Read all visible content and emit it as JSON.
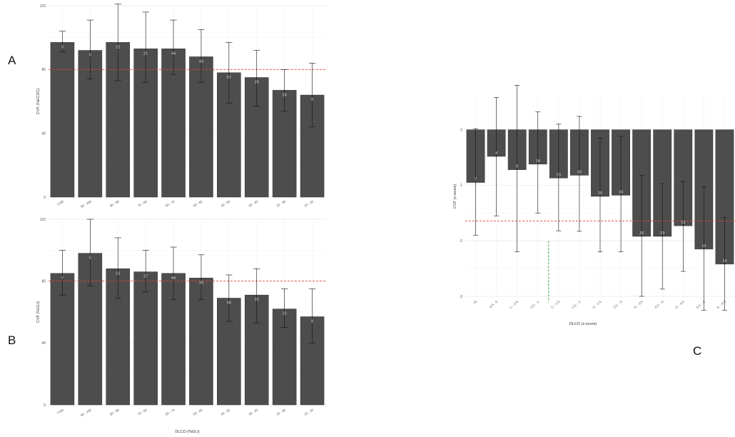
{
  "panel_labels": {
    "a": "A",
    "b": "B",
    "c": "C"
  },
  "colors": {
    "bar": "#4d4d4d",
    "bar_stroke": "#333333",
    "grid": "#e8e8e8",
    "ref_red": "#e8443a",
    "ref_green": "#34b233",
    "count_text": "#dddddd",
    "axis_text": "#555555"
  },
  "chart_data": [
    {
      "id": "A",
      "type": "bar",
      "ylabel": "CVF (%ECSC)",
      "xlabel": "",
      "ylim": [
        0,
        120
      ],
      "yticks": [
        0,
        40,
        80,
        120
      ],
      "categories": [
        ">100",
        "90 - 100",
        "80 - 90",
        "70 - 80",
        "60 - 70",
        "50 - 60",
        "40 - 50",
        "30 - 40",
        "20 - 30",
        "10 - 20"
      ],
      "values": [
        97,
        92,
        97,
        93,
        93,
        88,
        78,
        75,
        67,
        64
      ],
      "error_low": [
        91,
        74,
        73,
        72,
        77,
        72,
        59,
        57,
        54,
        44
      ],
      "error_high": [
        104,
        111,
        121,
        116,
        111,
        105,
        97,
        92,
        80,
        84
      ],
      "counts": [
        "3",
        "5",
        "12",
        "21",
        "44",
        "43",
        "57",
        "29",
        "24",
        "9"
      ],
      "reference_line": {
        "value": 80,
        "style": "dashed-red"
      }
    },
    {
      "id": "B",
      "type": "bar",
      "ylabel": "CVF (%GLI)",
      "xlabel": "DLCO (%GLI)",
      "ylim": [
        0,
        120
      ],
      "yticks": [
        0,
        40,
        80,
        120
      ],
      "categories": [
        ">100",
        "90 - 100",
        "80 - 90",
        "70 - 80",
        "60 - 70",
        "50 - 60",
        "40 - 50",
        "30 - 40",
        "20 - 30",
        "10 - 20"
      ],
      "values": [
        85,
        98,
        88,
        86,
        85,
        82,
        69,
        71,
        62,
        57
      ],
      "error_low": [
        71,
        77,
        69,
        73,
        68,
        68,
        54,
        53,
        50,
        40
      ],
      "error_high": [
        100,
        120,
        108,
        100,
        102,
        97,
        84,
        88,
        75,
        75
      ],
      "counts": [
        "7",
        "5",
        "12",
        "27",
        "49",
        "39",
        "56",
        "22",
        "22",
        "8"
      ],
      "reference_line": {
        "value": 80,
        "style": "dashed-red"
      }
    },
    {
      "id": "C",
      "type": "bar",
      "ylabel": "CVF (z-score)",
      "xlabel": "DLCO (z-score)",
      "ylim": [
        -3,
        0.6
      ],
      "yticks": [
        0,
        -1,
        -2,
        -3
      ],
      "categories": [
        ">0",
        "-0.5 - 0",
        "-1 - -0.5",
        "-1.5 - -1",
        "-2 - -1.5",
        "-2.5 - -2",
        "-3 - -2.5",
        "-3.5 - -3",
        "-4 - -3.5",
        "-4.5 - -4",
        "-5 - -4.5",
        "-5.5 - -5",
        "-6 - -5.5"
      ],
      "values": [
        -0.95,
        -0.48,
        -0.72,
        -0.62,
        -0.87,
        -0.82,
        -1.2,
        -1.18,
        -1.92,
        -1.92,
        -1.73,
        -2.15,
        -2.42
      ],
      "error_low": [
        -1.9,
        -1.55,
        -2.2,
        -1.5,
        -1.82,
        -1.83,
        -2.2,
        -2.2,
        -3.0,
        -2.87,
        -2.55,
        -3.25,
        -3.25
      ],
      "error_high": [
        0.02,
        0.58,
        0.8,
        0.32,
        0.1,
        0.24,
        -0.15,
        -0.12,
        -0.82,
        -0.97,
        -0.93,
        -1.03,
        -1.58
      ],
      "counts": [
        "7",
        "4",
        "8",
        "14",
        "23",
        "33",
        "20",
        "24",
        "26",
        "23",
        "13",
        "12",
        "14"
      ],
      "reference_line": {
        "value": -1.645,
        "style": "dashed-red"
      },
      "vertical_reference": {
        "after_category_index": 4,
        "style": "dashed-green"
      }
    }
  ]
}
